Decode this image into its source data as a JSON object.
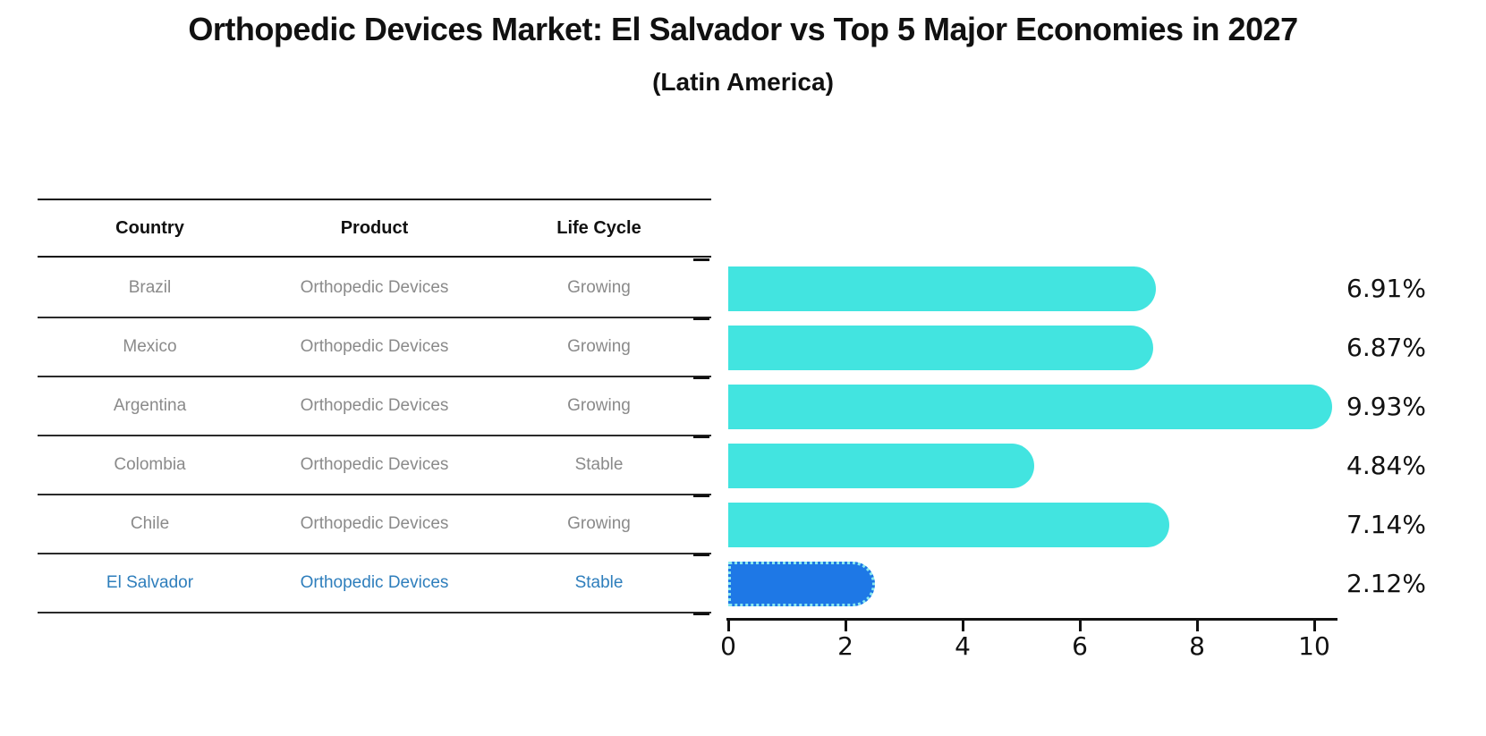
{
  "page": {
    "title": "Orthopedic Devices Market: El Salvador vs Top 5 Major Economies in 2027",
    "subtitle": "(Latin America)"
  },
  "table": {
    "headers": [
      "Country",
      "Product",
      "Life Cycle"
    ],
    "rows": [
      {
        "country": "Brazil",
        "product": "Orthopedic Devices",
        "life_cycle": "Growing"
      },
      {
        "country": "Mexico",
        "product": "Orthopedic Devices",
        "life_cycle": "Growing"
      },
      {
        "country": "Argentina",
        "product": "Orthopedic Devices",
        "life_cycle": "Growing"
      },
      {
        "country": "Colombia",
        "product": "Orthopedic Devices",
        "life_cycle": "Stable"
      },
      {
        "country": "Chile",
        "product": "Orthopedic Devices",
        "life_cycle": "Growing"
      },
      {
        "country": "El Salvador",
        "product": "Orthopedic Devices",
        "life_cycle": "Stable"
      }
    ]
  },
  "chart_data": {
    "type": "bar",
    "orientation": "horizontal",
    "title": "Orthopedic Devices Market: El Salvador vs Top 5 Major Economies in 2027",
    "subtitle": "(Latin America)",
    "categories": [
      "Brazil",
      "Mexico",
      "Argentina",
      "Colombia",
      "Chile",
      "El Salvador"
    ],
    "values": [
      6.91,
      6.87,
      9.93,
      4.84,
      7.14,
      2.12
    ],
    "value_labels": [
      "6.91%",
      "6.87%",
      "9.93%",
      "4.84%",
      "7.14%",
      "2.12%"
    ],
    "xlabel": "",
    "ylabel": "",
    "xlim": [
      0,
      10.5
    ],
    "xticks": [
      0,
      2,
      4,
      6,
      8,
      10
    ],
    "grid": false,
    "legend": "none",
    "highlight_category": "El Salvador",
    "colors": {
      "bar": "#42E4E0",
      "highlight_bar": "#1E78E6",
      "highlight_edge": "#8BE9EE",
      "highlight_text": "#2E7EBC",
      "row_text": "#8A8A8A",
      "axis": "#111111"
    }
  }
}
